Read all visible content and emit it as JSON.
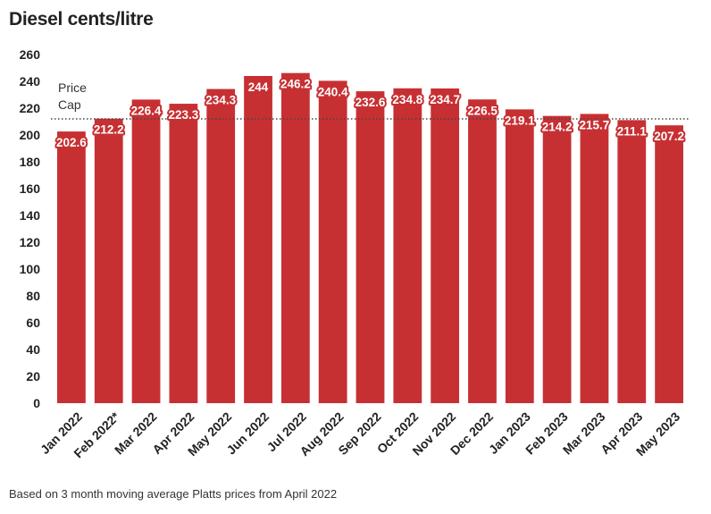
{
  "chart_data": {
    "type": "bar",
    "title": "Diesel cents/litre",
    "xlabel": "",
    "ylabel": "",
    "categories": [
      "Jan 2022",
      "Feb 2022*",
      "Mar 2022",
      "Apr 2022",
      "May 2022",
      "Jun 2022",
      "Jul 2022",
      "Aug 2022",
      "Sep 2022",
      "Oct 2022",
      "Nov 2022",
      "Dec 2022",
      "Jan 2023",
      "Feb 2023",
      "Mar 2023",
      "Apr 2023",
      "May 2023"
    ],
    "values": [
      202.6,
      212.2,
      226.4,
      223.3,
      234.3,
      244,
      246.2,
      240.4,
      232.6,
      234.8,
      234.7,
      226.5,
      219.1,
      214.2,
      215.7,
      211.1,
      207.2
    ],
    "value_labels": [
      "202.6",
      "212.2",
      "226.4",
      "223.3",
      "234.3",
      "244",
      "246.2",
      "240.4",
      "232.6",
      "234.8",
      "234.7",
      "226.5",
      "219.1",
      "214.2",
      "215.7",
      "211.1",
      "207.2"
    ],
    "ylim": [
      0,
      260
    ],
    "yticks": [
      0,
      20,
      40,
      60,
      80,
      100,
      120,
      140,
      160,
      180,
      200,
      220,
      240,
      260
    ],
    "grid": false,
    "reference_line": {
      "label": "Price Cap",
      "label_lines": [
        "Price",
        "Cap"
      ],
      "value": 212,
      "style": "dotted"
    },
    "footnote": "Based on 3 month moving average Platts prices from April 2022",
    "colors": {
      "bar": "#c73033",
      "label_outline": "#c73033",
      "axis_text": "#222222",
      "reference_line": "#444444"
    }
  }
}
